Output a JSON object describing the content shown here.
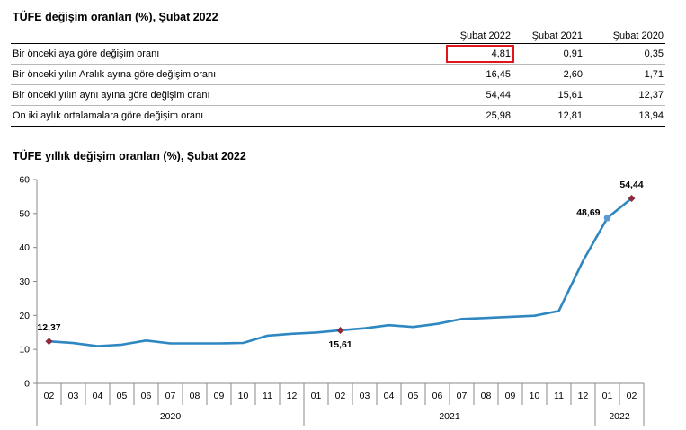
{
  "table": {
    "title": "TÜFE değişim oranları (%), Şubat 2022",
    "columns": [
      "Şubat 2022",
      "Şubat 2021",
      "Şubat 2020"
    ],
    "rows": [
      {
        "label": "Bir önceki aya göre değişim oranı",
        "values": [
          "4,81",
          "0,91",
          "0,35"
        ]
      },
      {
        "label": "Bir önceki yılın Aralık ayına göre değişim oranı",
        "values": [
          "16,45",
          "2,60",
          "1,71"
        ]
      },
      {
        "label": "Bir önceki yılın aynı ayına göre değişim oranı",
        "values": [
          "54,44",
          "15,61",
          "12,37"
        ]
      },
      {
        "label": "On iki aylık ortalamalara göre değişim oranı",
        "values": [
          "25,98",
          "12,81",
          "13,94"
        ]
      }
    ],
    "highlight_color": "#e0161b"
  },
  "chart_data": {
    "type": "line",
    "title": "TÜFE yıllık değişim oranları (%), Şubat 2022",
    "xlabel": "",
    "ylabel": "",
    "ylim": [
      0,
      60
    ],
    "yticks": [
      0,
      10,
      20,
      30,
      40,
      50,
      60
    ],
    "grid": false,
    "x": [
      "02",
      "03",
      "04",
      "05",
      "06",
      "07",
      "08",
      "09",
      "10",
      "11",
      "12",
      "01",
      "02",
      "03",
      "04",
      "05",
      "06",
      "07",
      "08",
      "09",
      "10",
      "11",
      "12",
      "01",
      "02"
    ],
    "years": [
      {
        "label": "2020",
        "start": 0,
        "count": 11
      },
      {
        "label": "2021",
        "start": 11,
        "count": 12
      },
      {
        "label": "2022",
        "start": 23,
        "count": 2
      }
    ],
    "series": [
      {
        "values": [
          12.37,
          11.86,
          10.94,
          11.39,
          12.62,
          11.76,
          11.77,
          11.75,
          11.89,
          14.03,
          14.6,
          14.97,
          15.61,
          16.19,
          17.14,
          16.59,
          17.53,
          18.95,
          19.25,
          19.58,
          19.89,
          21.31,
          36.08,
          48.69,
          54.44
        ],
        "color": "#2e87c0"
      }
    ],
    "markers": [
      {
        "index": 0,
        "label": "12,37",
        "color": "#8b2a3c",
        "shape": "diamond",
        "label_pos": "above"
      },
      {
        "index": 12,
        "label": "15,61",
        "color": "#8b2a3c",
        "shape": "diamond",
        "label_pos": "below"
      },
      {
        "index": 23,
        "label": "48,69",
        "color": "#5b9bd5",
        "shape": "circle",
        "label_pos": "left"
      },
      {
        "index": 24,
        "label": "54,44",
        "color": "#8b2a3c",
        "shape": "diamond",
        "label_pos": "above"
      }
    ]
  }
}
